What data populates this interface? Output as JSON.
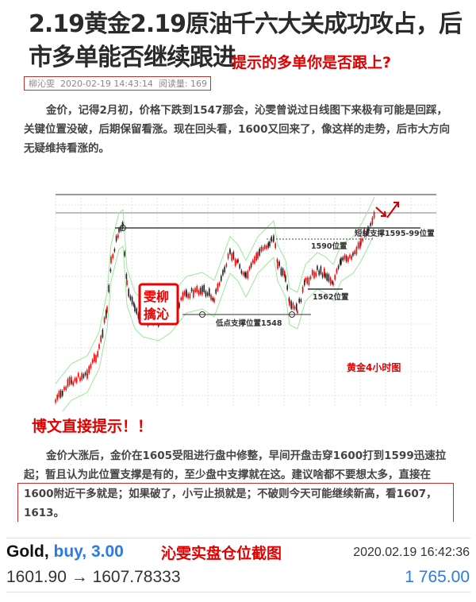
{
  "article": {
    "title": "2.19黄金2.19原油千六大关成功攻占，后市多单能否继续跟进",
    "callout": "提示的多单你是否跟上?",
    "meta": {
      "author": "柳沁雯",
      "date": "2020-02-19 14:43:14",
      "reads_label": "阅读量:",
      "reads": "169"
    },
    "para1": "金价，记得2月初，价格下跌到1547那会，沁雯曾说过日线图下来极有可能是回踩，关键位置没破，后期保留看涨。现在回头看，1600又回来了，像这样的走势，后市大方向无疑维持看涨的。",
    "tip_heading": "博文直接提示！！",
    "para2a": "金价大涨后，金价在1605受阻进行盘中修整，早间开盘击穿1600打到1599迅速拉起；暂且认为此位置支撑是有的，至少盘中支撑就在这。建议啥都不要想太多，直接在",
    "para2b": "1600附近干多就是；如果破了，小亏止损就是；不破则今天可能继续新高，看1607，1613。"
  },
  "chart": {
    "label_short_support": "短线支撑1595-99位置",
    "label_1590": "1590位置",
    "label_1562": "1562位置",
    "label_low_support": "低点支撑位置1548",
    "chart_caption": "黄金4小时图",
    "stamp": "柳沁雯",
    "up_color": "#ff0000",
    "down_color": "#222222",
    "band_color": "#9be89b"
  },
  "position": {
    "screenshot_caption": "沁雯实盘仓位截图",
    "symbol": "Gold,",
    "side_volume": "buy, 3.00",
    "time": "2020.02.19 16:42:36",
    "prices": "1601.90 → 1607.78333",
    "profit": "1 765.00"
  }
}
